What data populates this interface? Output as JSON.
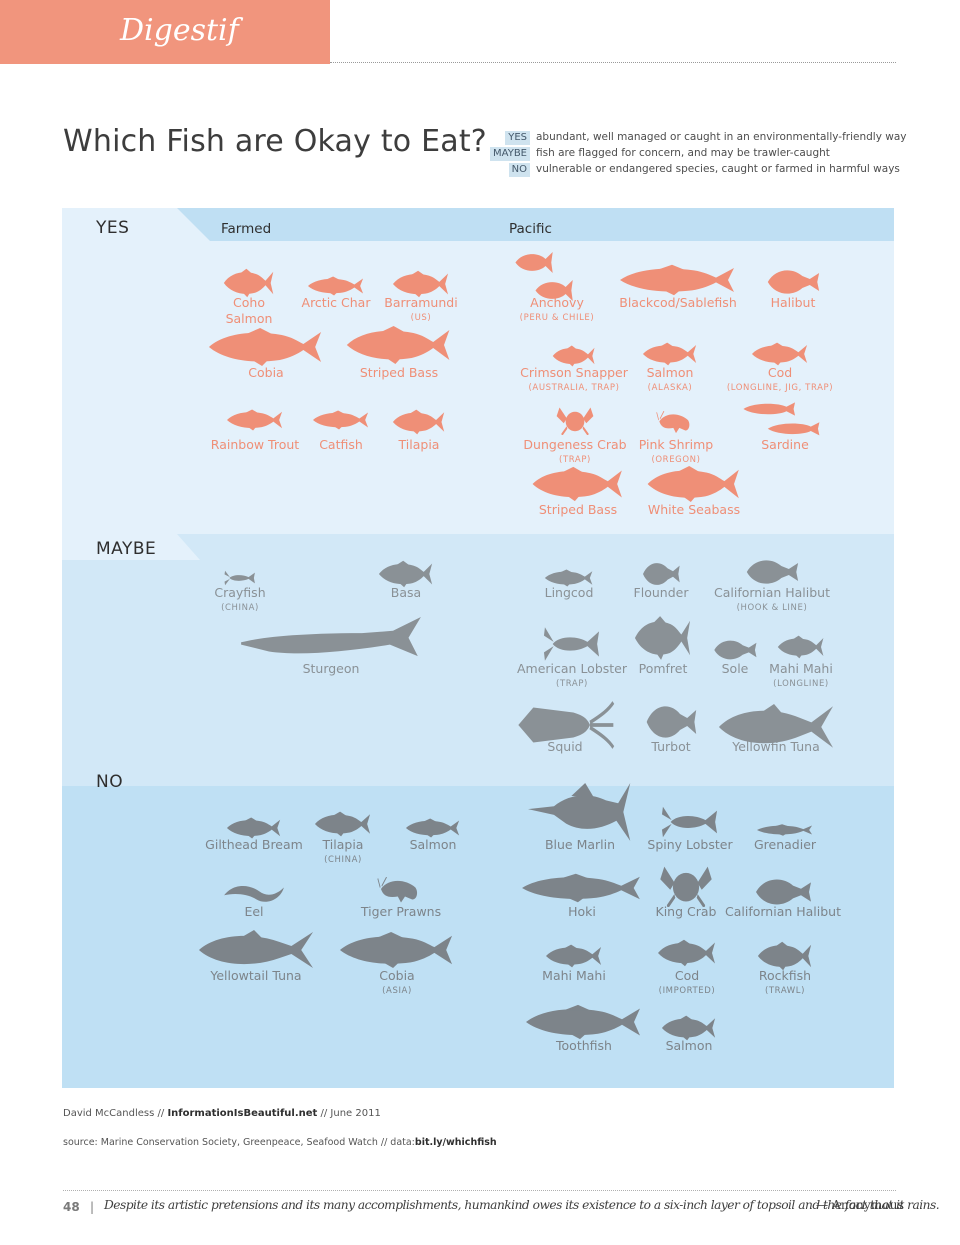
{
  "header": {
    "section": "Digestif"
  },
  "title": "Which Fish are Okay to Eat?",
  "legend": [
    {
      "tag": "YES",
      "text": "abundant, well managed or caught in an environmentally-friendly way"
    },
    {
      "tag": "MAYBE",
      "text": "fish are flagged for concern, and may be trawler-caught"
    },
    {
      "tag": "NO",
      "text": "vulnerable or endangered species, caught or farmed in harmful ways"
    }
  ],
  "colors": {
    "yes": "#ef8f77",
    "maybe": "#8a9196",
    "no": "#7d848a",
    "header": "#f1957d"
  },
  "sections": {
    "yes": {
      "label": "YES",
      "farmed_heading": "Farmed",
      "pacific_heading": "Pacific",
      "items": [
        {
          "name": "Coho",
          "name2": "Salmon",
          "icon": "fish-icon"
        },
        {
          "name": "Arctic Char",
          "icon": "fish-icon"
        },
        {
          "name": "Barramundi",
          "note": "(US)",
          "icon": "fish-icon"
        },
        {
          "name": "Cobia",
          "icon": "fish-icon"
        },
        {
          "name": "Striped Bass",
          "icon": "fish-icon"
        },
        {
          "name": "Rainbow Trout",
          "icon": "fish-icon"
        },
        {
          "name": "Catfish",
          "icon": "fish-icon"
        },
        {
          "name": "Tilapia",
          "icon": "fish-icon"
        },
        {
          "name": "Anchovy",
          "note": "(PERU & CHILE)",
          "icon": "anchovy-icon"
        },
        {
          "name": "Blackcod/Sablefish",
          "icon": "fish-icon"
        },
        {
          "name": "Halibut",
          "icon": "flatfish-icon"
        },
        {
          "name": "Crimson Snapper",
          "note": "(AUSTRALIA, TRAP)",
          "icon": "fish-icon"
        },
        {
          "name": "Salmon",
          "note": "(ALASKA)",
          "icon": "fish-icon"
        },
        {
          "name": "Cod",
          "note": "(LONGLINE, JIG, TRAP)",
          "icon": "fish-icon"
        },
        {
          "name": "Dungeness Crab",
          "note": "(TRAP)",
          "icon": "crab-icon"
        },
        {
          "name": "Pink Shrimp",
          "note": "(OREGON)",
          "icon": "shrimp-icon"
        },
        {
          "name": "Sardine",
          "icon": "sardine-icon"
        },
        {
          "name": "Striped Bass",
          "icon": "fish-icon"
        },
        {
          "name": "White Seabass",
          "icon": "fish-icon"
        }
      ]
    },
    "maybe": {
      "label": "MAYBE",
      "items": [
        {
          "name": "Crayfish",
          "note": "(CHINA)",
          "icon": "crayfish-icon"
        },
        {
          "name": "Basa",
          "icon": "fish-icon"
        },
        {
          "name": "Sturgeon",
          "icon": "sturgeon-icon"
        },
        {
          "name": "Lingcod",
          "icon": "fish-icon"
        },
        {
          "name": "Flounder",
          "icon": "flatfish-icon"
        },
        {
          "name": "Californian Halibut",
          "note": "(HOOK & LINE)",
          "icon": "flatfish-icon"
        },
        {
          "name": "American Lobster",
          "note": "(TRAP)",
          "icon": "lobster-icon"
        },
        {
          "name": "Pomfret",
          "icon": "fish-icon"
        },
        {
          "name": "Sole",
          "icon": "flatfish-icon"
        },
        {
          "name": "Mahi Mahi",
          "note": "(LONGLINE)",
          "icon": "fish-icon"
        },
        {
          "name": "Squid",
          "icon": "squid-icon"
        },
        {
          "name": "Turbot",
          "icon": "flatfish-icon"
        },
        {
          "name": "Yellowfin Tuna",
          "icon": "tuna-icon"
        }
      ]
    },
    "no": {
      "label": "NO",
      "items": [
        {
          "name": "Gilthead Bream",
          "icon": "fish-icon"
        },
        {
          "name": "Tilapia",
          "note": "(CHINA)",
          "icon": "fish-icon"
        },
        {
          "name": "Salmon",
          "icon": "fish-icon"
        },
        {
          "name": "Eel",
          "icon": "eel-icon"
        },
        {
          "name": "Tiger Prawns",
          "icon": "shrimp-icon"
        },
        {
          "name": "Yellowtail Tuna",
          "icon": "tuna-icon"
        },
        {
          "name": "Cobia",
          "note": "(ASIA)",
          "icon": "fish-icon"
        },
        {
          "name": "Blue Marlin",
          "icon": "marlin-icon"
        },
        {
          "name": "Spiny Lobster",
          "icon": "lobster-icon"
        },
        {
          "name": "Grenadier",
          "icon": "fish-icon"
        },
        {
          "name": "Hoki",
          "icon": "fish-icon"
        },
        {
          "name": "King Crab",
          "icon": "crab-icon"
        },
        {
          "name": "Californian Halibut",
          "icon": "flatfish-icon"
        },
        {
          "name": "Mahi Mahi",
          "icon": "fish-icon"
        },
        {
          "name": "Cod",
          "note": "(IMPORTED)",
          "icon": "fish-icon"
        },
        {
          "name": "Rockfish",
          "note": "(TRAWL)",
          "icon": "fish-icon"
        },
        {
          "name": "Toothfish",
          "icon": "fish-icon"
        },
        {
          "name": "Salmon",
          "icon": "fish-icon"
        }
      ]
    }
  },
  "credit": {
    "author": "David McCandless //",
    "site": "InformationIsBeautiful.net",
    "date": "// June 2011"
  },
  "source": {
    "text": "source: Marine Conservation Society, Greenpeace, Seafood Watch // data:",
    "link": "bit.ly/whichfish"
  },
  "footer": {
    "page": "48",
    "separator": "|",
    "quote": "Despite its artistic pretensions and its many accomplishments, humankind owes its existence to a six-inch layer of topsoil and the fact that it rains.",
    "author": "— Anonymous"
  }
}
